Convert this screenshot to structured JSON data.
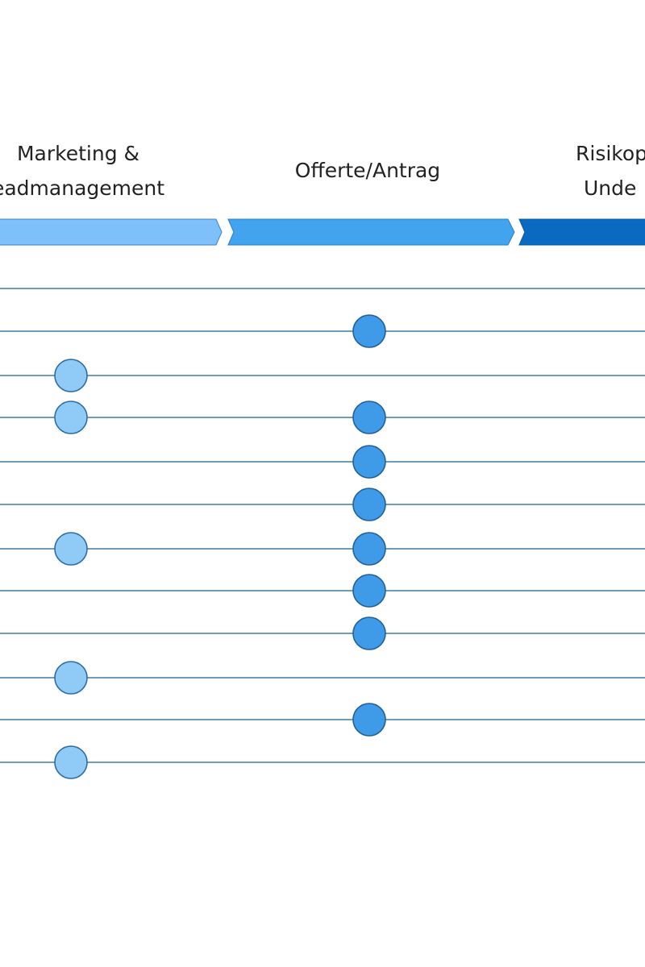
{
  "phases": [
    {
      "label": [
        "Marketing &",
        "eadmanagement"
      ],
      "dot_rows": [
        2,
        3,
        6,
        9,
        11
      ]
    },
    {
      "label": [
        "Offerte/Antrag"
      ],
      "dot_rows": [
        1,
        3,
        4,
        5,
        6,
        7,
        8,
        10
      ]
    },
    {
      "label": [
        "Risikop",
        "Unde"
      ],
      "dot_rows": []
    }
  ]
}
